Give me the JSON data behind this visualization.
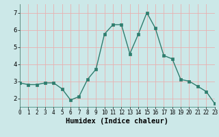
{
  "x": [
    0,
    1,
    2,
    3,
    4,
    5,
    6,
    7,
    8,
    9,
    10,
    11,
    12,
    13,
    14,
    15,
    16,
    17,
    18,
    19,
    20,
    21,
    22,
    23
  ],
  "y": [
    2.9,
    2.8,
    2.8,
    2.9,
    2.9,
    2.55,
    1.9,
    2.1,
    3.1,
    3.7,
    5.75,
    6.3,
    6.3,
    4.6,
    5.75,
    7.0,
    6.1,
    4.5,
    4.3,
    3.1,
    3.0,
    2.7,
    2.4,
    1.7
  ],
  "line_color": "#2e7d6e",
  "marker": "s",
  "marker_size": 2.2,
  "line_width": 1.0,
  "xlabel": "Humidex (Indice chaleur)",
  "xlim": [
    0,
    23
  ],
  "ylim": [
    1.5,
    7.5
  ],
  "yticks": [
    2,
    3,
    4,
    5,
    6,
    7
  ],
  "xticks": [
    0,
    1,
    2,
    3,
    4,
    5,
    6,
    7,
    8,
    9,
    10,
    11,
    12,
    13,
    14,
    15,
    16,
    17,
    18,
    19,
    20,
    21,
    22,
    23
  ],
  "bg_color": "#cce8e8",
  "grid_color": "#e8b0b0",
  "tick_fontsize": 5.5,
  "xlabel_fontsize": 7.5
}
